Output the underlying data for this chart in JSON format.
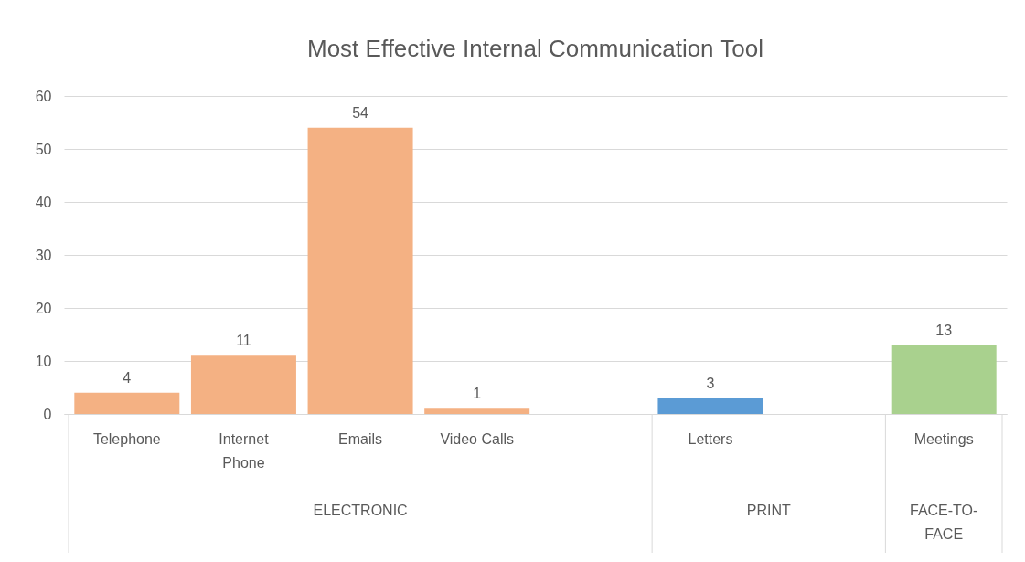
{
  "chart_data": {
    "type": "bar",
    "title": "Most Effective Internal Communication Tool",
    "categories": [
      "Telephone",
      "Internet Phone",
      "Emails",
      "Video Calls",
      null,
      "Letters",
      null,
      "Meetings"
    ],
    "series": [
      {
        "color": "#f4b183",
        "values": [
          4,
          11,
          54,
          1,
          null,
          null,
          null,
          null
        ]
      },
      {
        "color": "#5b9bd5",
        "values": [
          null,
          null,
          null,
          null,
          null,
          3,
          null,
          null
        ]
      },
      {
        "color": "#a9d18e",
        "values": [
          null,
          null,
          null,
          null,
          null,
          null,
          null,
          13
        ]
      }
    ],
    "annotations": [
      "ELECTRONIC",
      "PRINT",
      "FACE-TO-FACE"
    ],
    "ylim": [
      0,
      60
    ],
    "yticks": [
      0,
      10,
      20,
      30,
      40,
      50,
      60
    ],
    "grid": "y",
    "data_labels": true
  }
}
